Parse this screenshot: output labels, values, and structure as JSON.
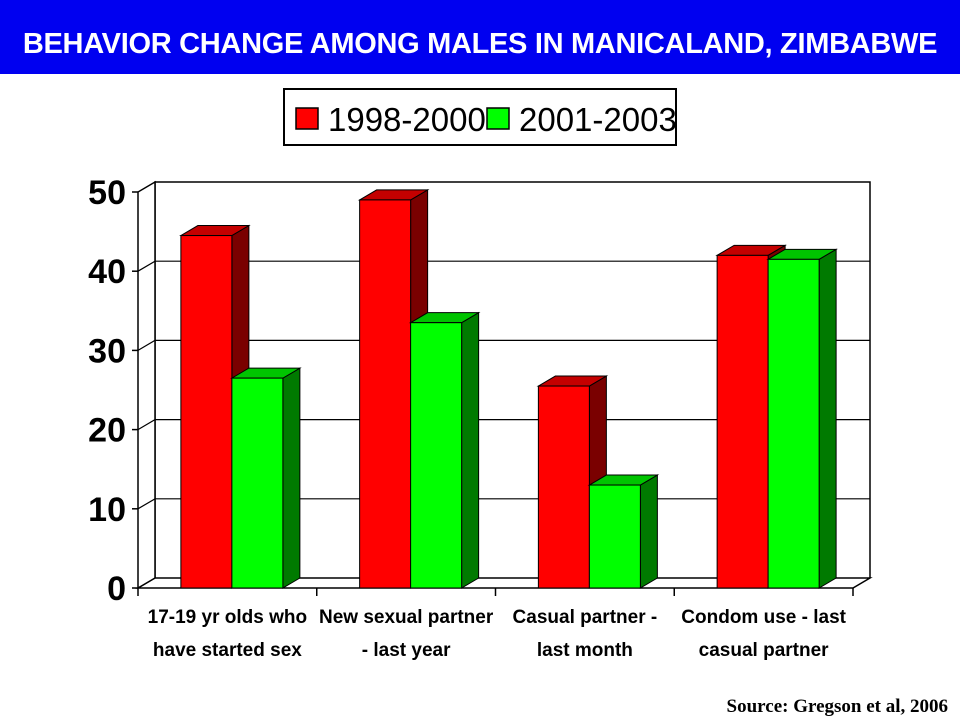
{
  "title": "BEHAVIOR CHANGE AMONG MALES IN MANICALAND, ZIMBABWE",
  "source": "Source: Gregson et al, 2006",
  "colors": {
    "title_bar": "#0000f0",
    "series_1_front": "#ff0000",
    "series_1_side": "#7a0000",
    "series_1_top": "#c40000",
    "series_2_front": "#00ff00",
    "series_2_side": "#007a00",
    "series_2_top": "#00c400"
  },
  "chart_data": {
    "type": "bar",
    "title": "",
    "xlabel": "",
    "ylabel": "",
    "ylim": [
      0,
      50
    ],
    "yticks": [
      "0",
      "10",
      "20",
      "30",
      "40",
      "50"
    ],
    "grid": true,
    "legend_position": "top-center",
    "style": "3d-clustered",
    "categories": [
      [
        "17-19 yr olds who",
        "have started sex"
      ],
      [
        "New sexual partner",
        "- last year"
      ],
      [
        "Casual partner -",
        "last month"
      ],
      [
        "Condom use - last",
        "casual partner"
      ]
    ],
    "series": [
      {
        "name": "1998-2000",
        "values": [
          44.5,
          49,
          25.5,
          42
        ]
      },
      {
        "name": "2001-2003",
        "values": [
          26.5,
          33.5,
          13,
          41.5
        ]
      }
    ]
  }
}
